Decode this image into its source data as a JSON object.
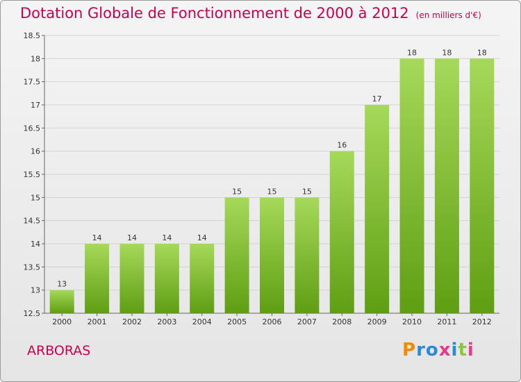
{
  "title": "Dotation Globale de Fonctionnement de 2000 à 2012",
  "subtitle": "(en milliers d'€)",
  "town": "ARBORAS",
  "brand": "Proxiti",
  "colors": {
    "accent": "#c8004e",
    "bar_top": "#a6d95a",
    "bar_bottom": "#5f9e13"
  },
  "chart_data": {
    "type": "bar",
    "title": "Dotation Globale de Fonctionnement de 2000 à 2012",
    "subtitle": "(en milliers d'€)",
    "categories": [
      "2000",
      "2001",
      "2002",
      "2003",
      "2004",
      "2005",
      "2006",
      "2007",
      "2008",
      "2009",
      "2010",
      "2011",
      "2012"
    ],
    "values": [
      13,
      14,
      14,
      14,
      14,
      15,
      15,
      15,
      16,
      17,
      18,
      18,
      18
    ],
    "ylim": [
      12.5,
      18.5
    ],
    "yticks": [
      "12.5",
      "13",
      "13.5",
      "14",
      "14.5",
      "15",
      "15.5",
      "16",
      "16.5",
      "17",
      "17.5",
      "18",
      "18.5"
    ],
    "grid": true,
    "data_labels": true
  }
}
